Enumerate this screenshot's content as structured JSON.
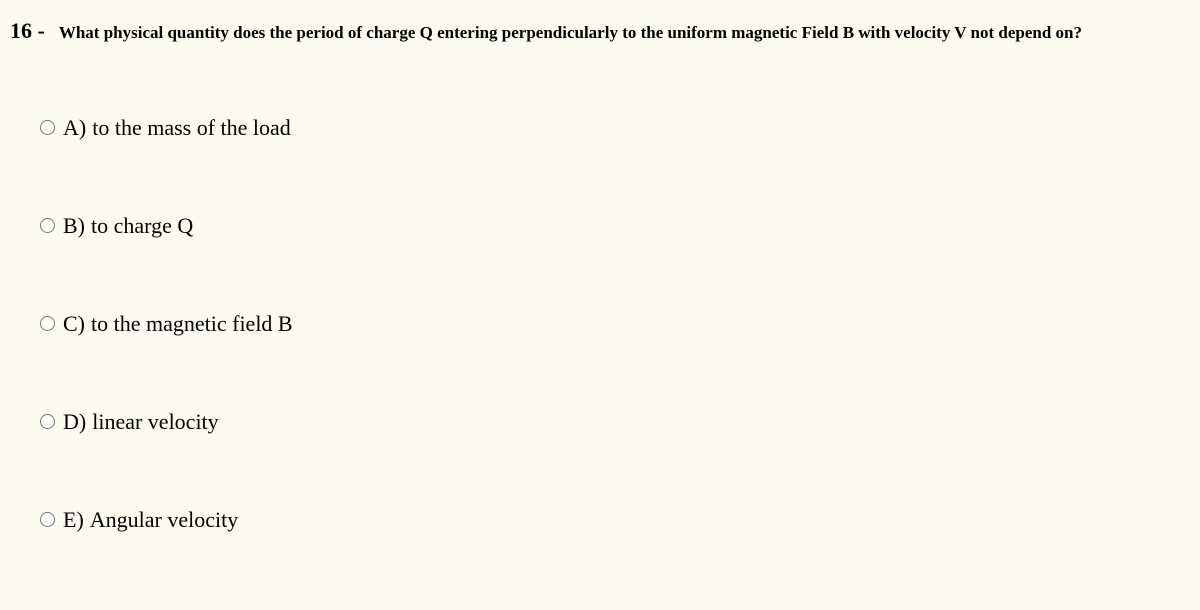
{
  "question": {
    "number": "16 -",
    "text": "What physical quantity does the period of charge Q entering perpendicularly to the uniform magnetic Field B with velocity V not depend on?"
  },
  "options": [
    {
      "letter": "A)",
      "text": "to the mass of the load"
    },
    {
      "letter": "B)",
      "text": "to charge Q"
    },
    {
      "letter": "C)",
      "text": "to the magnetic field B"
    },
    {
      "letter": "D)",
      "text": "linear velocity"
    },
    {
      "letter": "E)",
      "text": "Angular velocity"
    }
  ],
  "colors": {
    "background": "#fbfbef",
    "text": "#000000"
  },
  "typography": {
    "question_number_fontsize": 22,
    "question_text_fontsize": 17,
    "option_fontsize": 22,
    "font_family": "Times New Roman"
  }
}
